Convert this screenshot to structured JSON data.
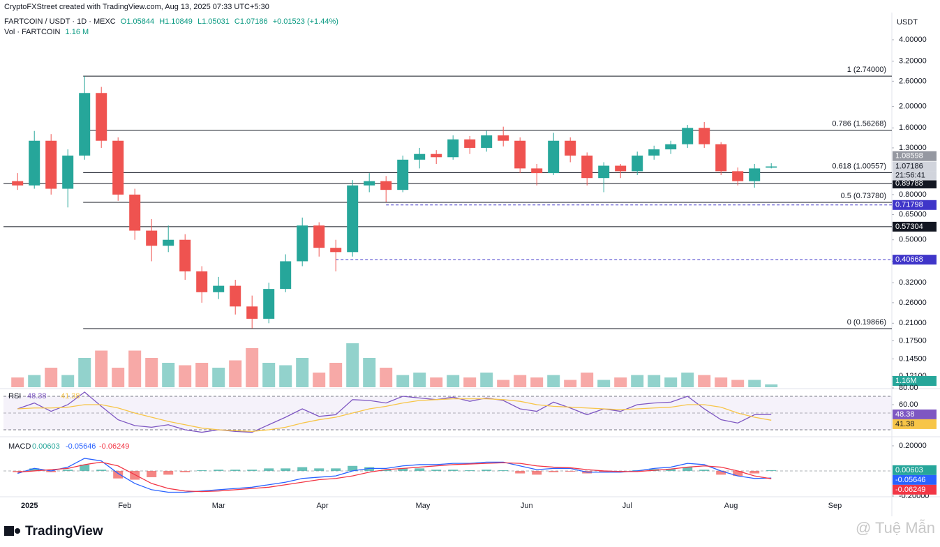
{
  "header": {
    "credit": "CryptoFXStreet created with TradingView.com, Aug 13, 2025 07:33 UTC+5:30",
    "symbol": "FARTCOIN / USDT · 1D · MEXC",
    "ohlc": [
      "O1.05844",
      "H1.10849",
      "L1.05031",
      "C1.07186",
      "+0.01523 (+1.44%)"
    ],
    "volume_name": "Vol · FARTCOIN",
    "volume_value": "1.16 M",
    "currency": "USDT"
  },
  "x_labels": [
    "2025",
    "Feb",
    "Mar",
    "Apr",
    "May",
    "Jun",
    "Jul",
    "Aug",
    "Sep"
  ],
  "footer": {
    "brand": "TradingView",
    "watermark": "@ Tuệ Mẫn"
  },
  "chart_data": [
    {
      "type": "candlestick",
      "log_scale": true,
      "up_color": "#26a69a",
      "down_color": "#ef5350",
      "ylim": [
        0.108,
        5.23
      ],
      "yticks": [
        {
          "value": 4,
          "label": "4.00000"
        },
        {
          "value": 3.2,
          "label": "3.20000"
        },
        {
          "value": 2.6,
          "label": "2.60000"
        },
        {
          "value": 2,
          "label": "2.00000"
        },
        {
          "value": 1.6,
          "label": "1.60000"
        },
        {
          "value": 1.3,
          "label": "1.30000"
        },
        {
          "value": 0.8,
          "label": "0.80000"
        },
        {
          "value": 0.65,
          "label": "0.65000"
        },
        {
          "value": 0.5,
          "label": "0.50000"
        },
        {
          "value": 0.4,
          "label": "0.40000"
        },
        {
          "value": 0.32,
          "label": "0.32000"
        },
        {
          "value": 0.26,
          "label": "0.26000"
        },
        {
          "value": 0.21,
          "label": "0.21000"
        },
        {
          "value": 0.175,
          "label": "0.17500"
        },
        {
          "value": 0.145,
          "label": "0.14500"
        },
        {
          "value": 0.121,
          "label": "0.12100"
        }
      ],
      "open": [
        0.92,
        0.88,
        1.4,
        0.85,
        1.2,
        2.3,
        1.4,
        0.8,
        0.55,
        0.47,
        0.5,
        0.36,
        0.29,
        0.31,
        0.25,
        0.22,
        0.3,
        0.4,
        0.58,
        0.46,
        0.44,
        0.88,
        0.92,
        0.84,
        1.15,
        1.22,
        1.18,
        1.42,
        1.3,
        1.48,
        1.4,
        1.05,
        1.0,
        1.4,
        1.2,
        0.95,
        1.08,
        1.02,
        1.2,
        1.28,
        1.35,
        1.6,
        1.35,
        1.02,
        0.92,
        1.05844
      ],
      "high": [
        1.0,
        1.55,
        1.5,
        1.28,
        2.74,
        2.45,
        1.45,
        0.85,
        0.62,
        0.58,
        0.53,
        0.38,
        0.34,
        0.33,
        0.28,
        0.32,
        0.43,
        0.63,
        0.6,
        0.5,
        0.93,
        1.0,
        0.97,
        1.2,
        1.3,
        1.27,
        1.48,
        1.47,
        1.55,
        1.62,
        1.45,
        1.1,
        1.52,
        1.45,
        1.24,
        1.12,
        1.1,
        1.25,
        1.33,
        1.4,
        1.65,
        1.7,
        1.38,
        1.06,
        1.1,
        1.10849
      ],
      "low": [
        0.84,
        0.85,
        0.8,
        0.7,
        1.15,
        1.3,
        0.75,
        0.5,
        0.4,
        0.44,
        0.33,
        0.26,
        0.27,
        0.23,
        0.199,
        0.21,
        0.29,
        0.38,
        0.42,
        0.36,
        0.42,
        0.82,
        0.74,
        0.82,
        1.05,
        1.1,
        1.15,
        1.22,
        1.25,
        1.32,
        1.0,
        0.88,
        0.98,
        1.12,
        0.88,
        0.82,
        0.95,
        0.98,
        1.15,
        1.22,
        1.3,
        1.3,
        0.98,
        0.88,
        0.86,
        1.05031
      ],
      "close": [
        0.88,
        1.4,
        0.85,
        1.2,
        2.3,
        1.4,
        0.8,
        0.55,
        0.47,
        0.5,
        0.36,
        0.29,
        0.31,
        0.25,
        0.22,
        0.3,
        0.4,
        0.58,
        0.46,
        0.44,
        0.88,
        0.92,
        0.84,
        1.15,
        1.22,
        1.18,
        1.42,
        1.3,
        1.48,
        1.4,
        1.05,
        1.0,
        1.4,
        1.2,
        0.95,
        1.08,
        1.02,
        1.2,
        1.28,
        1.35,
        1.6,
        1.35,
        1.02,
        0.92,
        1.05,
        1.07186
      ],
      "volume": {
        "ylim": [
          0,
          40
        ],
        "values": [
          4,
          5,
          8,
          5,
          12,
          15,
          8,
          15,
          12,
          10,
          9,
          10,
          8,
          11,
          16,
          10,
          9,
          12,
          6,
          10,
          18,
          12,
          8,
          5,
          6,
          4,
          5,
          4,
          6,
          3,
          5,
          4,
          5,
          3,
          6,
          3,
          4,
          5,
          5,
          4,
          6,
          5,
          4,
          3,
          3,
          1.16
        ],
        "badge": {
          "value": 1.16,
          "label": "1.16M"
        }
      },
      "levels": [
        {
          "label": "1 (2.74000)",
          "value": 2.74
        },
        {
          "label": "0.786 (1.56268)",
          "value": 1.56268
        },
        {
          "label": "0.618 (1.00557)",
          "value": 1.00557
        },
        {
          "label": "0.5 (0.73780)",
          "value": 0.7378
        },
        {
          "label": "0 (0.19866)",
          "value": 0.19866
        }
      ],
      "price_lines": [
        {
          "value": 0.89788,
          "color": "#131722",
          "style": "solid"
        },
        {
          "value": 0.57304,
          "color": "#131722",
          "style": "solid"
        },
        {
          "value": 0.71798,
          "color": "#3f35c9",
          "style": "dashed"
        },
        {
          "value": 0.40668,
          "color": "#3f35c9",
          "style": "dashed"
        }
      ],
      "badges": [
        {
          "value": 1.08598,
          "color": "#9598a1"
        },
        {
          "value": 1.07186,
          "color": "#d1d4dc",
          "countdown": "21:56:41"
        }
      ]
    },
    {
      "type": "line",
      "title": "RSI",
      "ylim": [
        23.3,
        80
      ],
      "yticks": [
        {
          "value": 80,
          "label": "80.00"
        },
        {
          "value": 60,
          "label": "60.00"
        }
      ],
      "band": [
        30,
        70
      ],
      "midline": 50,
      "series": [
        {
          "color": "#7e57c2",
          "values": [
            55,
            62,
            52,
            60,
            75,
            58,
            42,
            35,
            33,
            36,
            30,
            27,
            30,
            28,
            27,
            36,
            45,
            55,
            46,
            48,
            66,
            65,
            62,
            70,
            68,
            66,
            69,
            64,
            68,
            65,
            55,
            52,
            63,
            56,
            48,
            55,
            52,
            60,
            62,
            63,
            70,
            55,
            42,
            38,
            48,
            48.38
          ]
        },
        {
          "color": "#f7c548",
          "values": [
            55,
            56,
            56,
            57,
            60,
            60,
            56,
            50,
            45,
            40,
            36,
            32,
            30,
            29,
            28,
            30,
            33,
            38,
            42,
            45,
            50,
            55,
            58,
            62,
            65,
            66,
            67,
            67,
            67,
            66,
            64,
            60,
            58,
            57,
            56,
            55,
            54,
            55,
            56,
            57,
            60,
            60,
            57,
            50,
            45,
            41.38
          ]
        }
      ]
    },
    {
      "type": "line",
      "title": "MACD",
      "ylim": [
        -0.206,
        0.261
      ],
      "yticks": [
        {
          "value": 0.2,
          "label": "0.20000"
        },
        {
          "value": -0.2,
          "label": "-0.20000"
        }
      ],
      "midline": 0,
      "series": [
        {
          "type": "bar",
          "color": "#26a69a",
          "down_color": "#ef5350",
          "values": [
            -0.01,
            0.02,
            -0.01,
            0.01,
            0.05,
            0.01,
            -0.06,
            -0.07,
            -0.05,
            -0.03,
            -0.01,
            0.005,
            0.01,
            0.01,
            0.01,
            0.02,
            0.02,
            0.03,
            0.02,
            0.02,
            0.04,
            0.03,
            0.01,
            0.02,
            0.02,
            0.01,
            0.01,
            0.005,
            0.01,
            0.005,
            -0.02,
            -0.03,
            -0.01,
            -0.005,
            -0.02,
            -0.01,
            -0.005,
            0.005,
            0.015,
            0.015,
            0.03,
            0.01,
            -0.03,
            -0.04,
            -0.02,
            0.00603
          ]
        },
        {
          "color": "#2962ff",
          "values": [
            -0.02,
            0.02,
            0.0,
            0.03,
            0.1,
            0.08,
            -0.02,
            -0.1,
            -0.15,
            -0.17,
            -0.17,
            -0.16,
            -0.15,
            -0.14,
            -0.13,
            -0.11,
            -0.09,
            -0.06,
            -0.05,
            -0.04,
            0.0,
            0.02,
            0.02,
            0.04,
            0.05,
            0.05,
            0.06,
            0.06,
            0.07,
            0.07,
            0.04,
            0.01,
            0.02,
            0.02,
            -0.01,
            -0.01,
            -0.01,
            0.0,
            0.02,
            0.03,
            0.06,
            0.05,
            0.0,
            -0.04,
            -0.06,
            -0.05646
          ]
        },
        {
          "color": "#f23645",
          "values": [
            -0.01,
            0.0,
            0.01,
            0.02,
            0.05,
            0.07,
            0.04,
            -0.03,
            -0.1,
            -0.14,
            -0.16,
            -0.165,
            -0.16,
            -0.15,
            -0.14,
            -0.13,
            -0.11,
            -0.09,
            -0.07,
            -0.06,
            -0.04,
            -0.01,
            0.01,
            0.02,
            0.03,
            0.04,
            0.05,
            0.055,
            0.06,
            0.065,
            0.06,
            0.04,
            0.03,
            0.025,
            0.01,
            0.0,
            -0.005,
            -0.005,
            0.005,
            0.015,
            0.03,
            0.04,
            0.03,
            0.0,
            -0.04,
            -0.06249
          ]
        }
      ]
    }
  ]
}
